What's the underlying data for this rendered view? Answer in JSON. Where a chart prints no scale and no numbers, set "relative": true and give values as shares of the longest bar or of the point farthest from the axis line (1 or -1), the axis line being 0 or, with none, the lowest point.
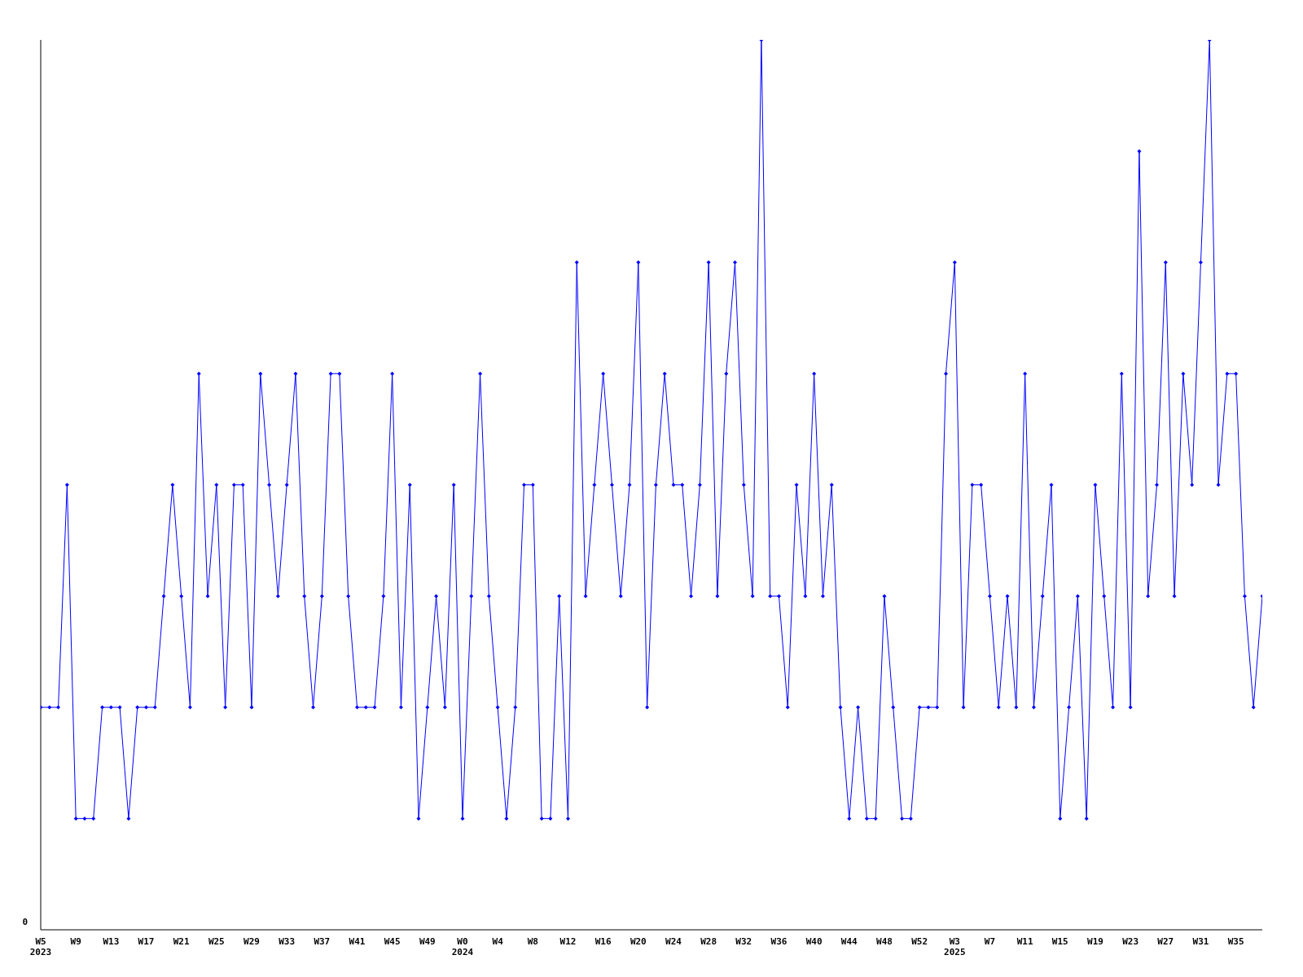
{
  "chart_data": {
    "type": "line",
    "relative": true,
    "annotations": [
      "0"
    ],
    "marker": "diamond",
    "grid": false,
    "legend": false,
    "categories": [
      "W5\n2023",
      null,
      null,
      null,
      "W9",
      null,
      null,
      null,
      "W13",
      null,
      null,
      null,
      "W17",
      null,
      null,
      null,
      "W21",
      null,
      null,
      null,
      "W25",
      null,
      null,
      null,
      "W29",
      null,
      null,
      null,
      "W33",
      null,
      null,
      null,
      "W37",
      null,
      null,
      null,
      "W41",
      null,
      null,
      null,
      "W45",
      null,
      null,
      null,
      "W49",
      null,
      null,
      null,
      "W0\n2024",
      null,
      null,
      null,
      "W4",
      null,
      null,
      null,
      "W8",
      null,
      null,
      null,
      "W12",
      null,
      null,
      null,
      "W16",
      null,
      null,
      null,
      "W20",
      null,
      null,
      null,
      "W24",
      null,
      null,
      null,
      "W28",
      null,
      null,
      null,
      "W32",
      null,
      null,
      null,
      "W36",
      null,
      null,
      null,
      "W40",
      null,
      null,
      null,
      "W44",
      null,
      null,
      null,
      "W48",
      null,
      null,
      null,
      "W52",
      null,
      null,
      null,
      "W3\n2025",
      null,
      null,
      null,
      "W7",
      null,
      null,
      null,
      "W11",
      null,
      null,
      null,
      "W15",
      null,
      null,
      null,
      "W19",
      null,
      null,
      null,
      "W23",
      null,
      null,
      null,
      "W27",
      null,
      null,
      null,
      "W31",
      null,
      null,
      null,
      "W35",
      null,
      null,
      null
    ],
    "series": [
      {
        "color": "#0000ff",
        "values": [
          0.25,
          0.25,
          0.25,
          0.5,
          0.125,
          0.125,
          0.125,
          0.25,
          0.25,
          0.25,
          0.125,
          0.25,
          0.25,
          0.25,
          0.375,
          0.5,
          0.375,
          0.25,
          0.625,
          0.375,
          0.5,
          0.25,
          0.5,
          0.5,
          0.25,
          0.625,
          0.5,
          0.375,
          0.5,
          0.625,
          0.375,
          0.25,
          0.375,
          0.625,
          0.625,
          0.375,
          0.25,
          0.25,
          0.25,
          0.375,
          0.625,
          0.25,
          0.5,
          0.125,
          0.25,
          0.375,
          0.25,
          0.5,
          0.125,
          0.375,
          0.625,
          0.375,
          0.25,
          0.125,
          0.25,
          0.5,
          0.5,
          0.125,
          0.125,
          0.375,
          0.125,
          0.75,
          0.375,
          0.5,
          0.625,
          0.5,
          0.375,
          0.5,
          0.75,
          0.25,
          0.5,
          0.625,
          0.5,
          0.5,
          0.375,
          0.5,
          0.75,
          0.375,
          0.625,
          0.75,
          0.5,
          0.375,
          1,
          0.375,
          0.375,
          0.25,
          0.5,
          0.375,
          0.625,
          0.375,
          0.5,
          0.25,
          0.125,
          0.25,
          0.125,
          0.125,
          0.375,
          0.25,
          0.125,
          0.125,
          0.25,
          0.25,
          0.25,
          0.625,
          0.75,
          0.25,
          0.5,
          0.5,
          0.375,
          0.25,
          0.375,
          0.25,
          0.625,
          0.25,
          0.375,
          0.5,
          0.125,
          0.25,
          0.375,
          0.125,
          0.5,
          0.375,
          0.25,
          0.625,
          0.25,
          0.875,
          0.375,
          0.5,
          0.75,
          0.375,
          0.625,
          0.5,
          0.75,
          1,
          0.5,
          0.625,
          0.625,
          0.375,
          0.25,
          0.375
        ]
      }
    ]
  }
}
